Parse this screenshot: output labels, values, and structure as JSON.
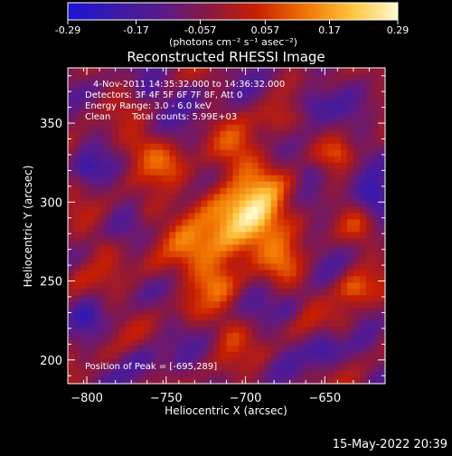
{
  "colorbar": {
    "ticks": [
      "-0.29",
      "-0.17",
      "-0.057",
      "0.057",
      "0.17",
      "0.29"
    ],
    "tick_values": [
      -0.29,
      -0.17,
      -0.057,
      0.057,
      0.17,
      0.29
    ],
    "range": [
      -0.29,
      0.29
    ],
    "units_label": "(photons cm⁻² s⁻¹ asec⁻²)",
    "colors": [
      "#1b13d6",
      "#3a1aa8",
      "#5a1a8a",
      "#8a1840",
      "#c81e00",
      "#f07000",
      "#ffc23a",
      "#fffbd0"
    ]
  },
  "chart_data": {
    "type": "heatmap",
    "title": "Reconstructed RHESSI Image",
    "xlabel": "Heliocentric X (arcsec)",
    "ylabel": "Heliocentric Y (arcsec)",
    "xlim": [
      -812,
      -612
    ],
    "ylim": [
      185,
      385
    ],
    "xticks": [
      -800,
      -750,
      -700,
      -650
    ],
    "yticks": [
      200,
      250,
      300,
      350
    ],
    "xtick_labels": [
      "−800",
      "−750",
      "−700",
      "−650"
    ],
    "ytick_labels": [
      "200",
      "250",
      "300",
      "350"
    ],
    "peak": {
      "x": -695,
      "y": 289
    },
    "annotations": [
      "4-Nov-2011 14:35:32.000 to 14:36:32.000",
      "Detectors: 3F 4F 5F 6F 7F 8F, Att 0",
      "Energy Range: 3.0 - 6.0 keV",
      "Clean",
      "Total counts: 5.99E+03"
    ],
    "peak_label": "Position of Peak = [-695,289]",
    "sources": [
      {
        "x": -694,
        "y": 290,
        "sigma": 14,
        "amp": 0.25
      },
      {
        "x": -712,
        "y": 275,
        "sigma": 12,
        "amp": 0.21
      },
      {
        "x": -722,
        "y": 300,
        "sigma": 11,
        "amp": 0.12
      },
      {
        "x": -735,
        "y": 268,
        "sigma": 11,
        "amp": 0.13
      },
      {
        "x": -718,
        "y": 248,
        "sigma": 9,
        "amp": 0.12
      },
      {
        "x": -702,
        "y": 330,
        "sigma": 12,
        "amp": 0.13
      },
      {
        "x": -746,
        "y": 322,
        "sigma": 9,
        "amp": 0.12
      },
      {
        "x": -760,
        "y": 335,
        "sigma": 8,
        "amp": 0.09
      },
      {
        "x": -682,
        "y": 352,
        "sigma": 8,
        "amp": 0.1
      },
      {
        "x": -682,
        "y": 312,
        "sigma": 10,
        "amp": 0.1
      },
      {
        "x": -676,
        "y": 258,
        "sigma": 9,
        "amp": 0.11
      },
      {
        "x": -668,
        "y": 290,
        "sigma": 8,
        "amp": 0.07
      },
      {
        "x": -756,
        "y": 258,
        "sigma": 8,
        "amp": 0.09
      },
      {
        "x": -762,
        "y": 295,
        "sigma": 7,
        "amp": 0.07
      },
      {
        "x": -772,
        "y": 335,
        "sigma": 7,
        "amp": 0.06
      },
      {
        "x": -708,
        "y": 218,
        "sigma": 8,
        "amp": 0.09
      },
      {
        "x": -735,
        "y": 232,
        "sigma": 7,
        "amp": 0.07
      },
      {
        "x": -690,
        "y": 205,
        "sigma": 6,
        "amp": 0.05
      },
      {
        "x": -632,
        "y": 245,
        "sigma": 8,
        "amp": 0.16
      },
      {
        "x": -640,
        "y": 225,
        "sigma": 7,
        "amp": 0.09
      },
      {
        "x": -640,
        "y": 330,
        "sigma": 6,
        "amp": 0.1
      },
      {
        "x": -628,
        "y": 282,
        "sigma": 7,
        "amp": 0.07
      },
      {
        "x": -808,
        "y": 252,
        "sigma": 7,
        "amp": 0.08
      },
      {
        "x": -790,
        "y": 272,
        "sigma": 5,
        "amp": 0.05
      },
      {
        "x": -805,
        "y": 358,
        "sigma": 6,
        "amp": 0.05
      },
      {
        "x": -790,
        "y": 205,
        "sigma": 6,
        "amp": 0.05
      },
      {
        "x": -658,
        "y": 363,
        "sigma": 8,
        "amp": -0.14
      },
      {
        "x": -620,
        "y": 302,
        "sigma": 8,
        "amp": -0.18
      },
      {
        "x": -650,
        "y": 205,
        "sigma": 8,
        "amp": -0.15
      },
      {
        "x": -800,
        "y": 322,
        "sigma": 6,
        "amp": -0.1
      },
      {
        "x": -735,
        "y": 368,
        "sigma": 8,
        "amp": -0.09
      },
      {
        "x": -765,
        "y": 200,
        "sigma": 8,
        "amp": -0.1
      },
      {
        "x": -800,
        "y": 228,
        "sigma": 6,
        "amp": -0.09
      },
      {
        "x": -660,
        "y": 320,
        "sigma": 6,
        "amp": -0.1
      },
      {
        "x": -672,
        "y": 232,
        "sigma": 6,
        "amp": -0.08
      },
      {
        "x": -760,
        "y": 370,
        "sigma": 6,
        "amp": -0.08
      }
    ]
  },
  "timestamp": "15-May-2022 20:39"
}
